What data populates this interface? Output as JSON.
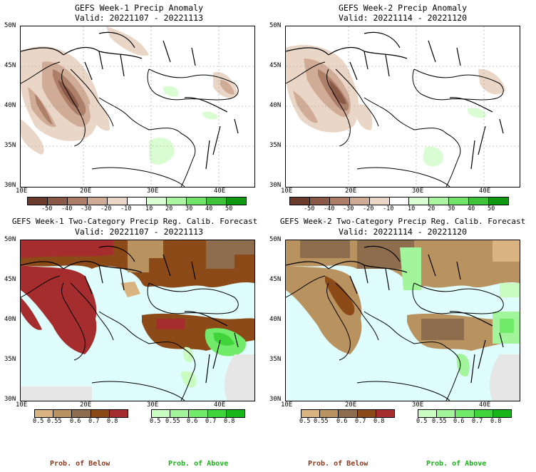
{
  "panels": [
    {
      "title": "GEFS Week-1 Precip Anomaly",
      "valid": "Valid: 20221107 - 20221113"
    },
    {
      "title": "GEFS Week-2 Precip Anomaly",
      "valid": "Valid: 20221114 - 20221120"
    },
    {
      "title": "GEFS Week-1 Two-Category Precip Reg. Calib. Forecast",
      "valid": "Valid: 20221107 - 20221113"
    },
    {
      "title": "GEFS Week-2 Two-Category Precip Reg. Calib. Forecast",
      "valid": "Valid: 20221114 - 20221120"
    }
  ],
  "lat_ticks": [
    "50N",
    "45N",
    "40N",
    "35N",
    "30N"
  ],
  "lon_ticks": [
    "10E",
    "20E",
    "30E",
    "40E"
  ],
  "anomaly_colorbar": {
    "labels": [
      "-50",
      "-40",
      "-30",
      "-20",
      "-10",
      "10",
      "20",
      "30",
      "40",
      "50"
    ],
    "colors": [
      "#6b3c2e",
      "#8a5a47",
      "#ad7f69",
      "#d0ab95",
      "#ead6c6",
      "#ffffff",
      "#dafcd3",
      "#aef5a3",
      "#72e36a",
      "#3ec33a",
      "#119911"
    ]
  },
  "prob_below_colorbar": {
    "labels": [
      "0.5",
      "0.55",
      "0.6",
      "0.7",
      "0.8"
    ],
    "colors": [
      "#d9b380",
      "#b8925f",
      "#8d6d4e",
      "#8b4a17",
      "#a52d2d"
    ]
  },
  "prob_above_colorbar": {
    "labels": [
      "0.5",
      "0.55",
      "0.6",
      "0.7",
      "0.8"
    ],
    "colors": [
      "#c9fcc0",
      "#a3f59b",
      "#72ea6a",
      "#3ed43a",
      "#15b615"
    ]
  },
  "footer": {
    "below": "Prob. of Below",
    "above": "Prob. of Above"
  },
  "colors": {
    "below_text": "#8b3a1e",
    "above_text": "#19b219",
    "sea": "#dffdfd",
    "dry": "#e6e6e6"
  }
}
